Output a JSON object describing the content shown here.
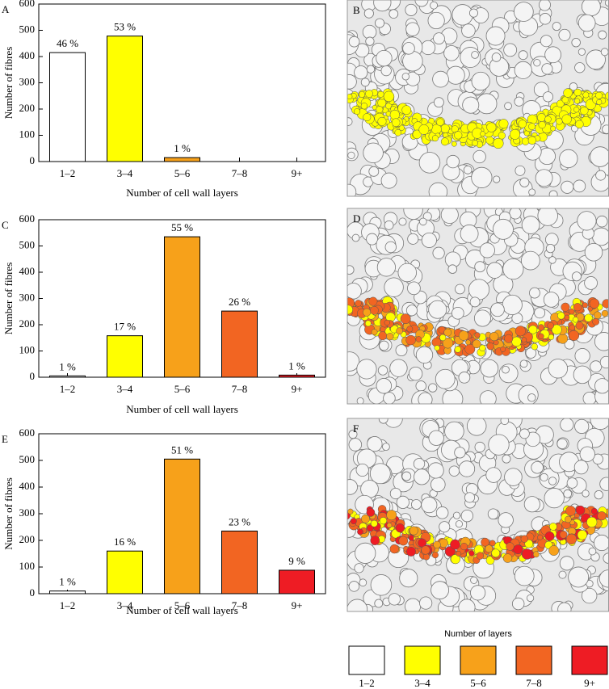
{
  "chart_data": [
    {
      "type": "bar",
      "label": "A",
      "xlabel": "Number of cell wall layers",
      "ylabel": "Number of fibres",
      "categories": [
        "1–2",
        "3–4",
        "5–6",
        "7–8",
        "9+"
      ],
      "values": [
        415,
        478,
        15,
        0,
        0
      ],
      "colors": [
        "#ffffff",
        "#ffff00",
        "#f7a11a",
        "#f26522",
        "#ee1c24"
      ],
      "annotations": [
        "46 %",
        "53 %",
        "1 %",
        null,
        null
      ],
      "ylim": [
        0,
        600
      ],
      "yticks": [
        0,
        100,
        200,
        300,
        400,
        500,
        600
      ]
    },
    {
      "type": "bar",
      "label": "C",
      "xlabel": "Number of cell wall layers",
      "ylabel": "Number of fibres",
      "categories": [
        "1–2",
        "3–4",
        "5–6",
        "7–8",
        "9+"
      ],
      "values": [
        5,
        158,
        535,
        252,
        8
      ],
      "colors": [
        "#ffffff",
        "#ffff00",
        "#f7a11a",
        "#f26522",
        "#ee1c24"
      ],
      "annotations": [
        "1 %",
        "17 %",
        "55 %",
        "26 %",
        "1 %"
      ],
      "ylim": [
        0,
        600
      ],
      "yticks": [
        0,
        100,
        200,
        300,
        400,
        500,
        600
      ]
    },
    {
      "type": "bar",
      "label": "E",
      "xlabel": "Number of cell wall layers",
      "ylabel": "Number of fibres",
      "categories": [
        "1–2",
        "3–4",
        "5–6",
        "7–8",
        "9+"
      ],
      "values": [
        10,
        160,
        505,
        235,
        88
      ],
      "colors": [
        "#ffffff",
        "#ffff00",
        "#f7a11a",
        "#f26522",
        "#ee1c24"
      ],
      "annotations": [
        "1 %",
        "16 %",
        "51 %",
        "23 %",
        "9 %"
      ],
      "ylim": [
        0,
        600
      ],
      "yticks": [
        0,
        100,
        200,
        300,
        400,
        500,
        600
      ]
    }
  ],
  "images": [
    {
      "label": "B"
    },
    {
      "label": "D"
    },
    {
      "label": "F"
    }
  ],
  "legend": {
    "title": "Number of layers",
    "items": [
      {
        "label": "1–2",
        "color": "#ffffff"
      },
      {
        "label": "3–4",
        "color": "#ffff00"
      },
      {
        "label": "5–6",
        "color": "#f7a11a"
      },
      {
        "label": "7–8",
        "color": "#f26522"
      },
      {
        "label": "9+",
        "color": "#ee1c24"
      }
    ]
  }
}
